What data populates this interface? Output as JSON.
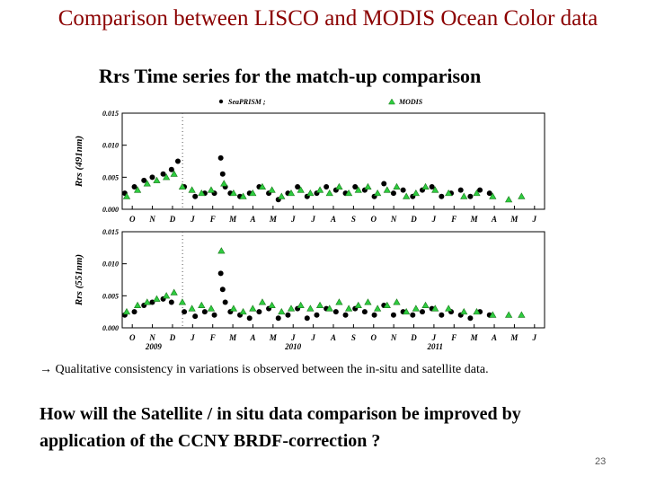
{
  "slide": {
    "title": "Comparison between LISCO and MODIS Ocean Color data",
    "subtitle": "Rrs Time series for the match-up comparison",
    "bullet_arrow": "→",
    "bullet_text": "Qualitative consistency in variations is observed between the in-situ and satellite data.",
    "question": "How will the Satellite / in situ data comparison be improved by application of the CCNY BRDF-correction ?",
    "page_number": "23"
  },
  "colors": {
    "title": "#8b0000",
    "seaprism": "#000000",
    "modis": "#2ecc40",
    "modis_edge": "#1a7a1a"
  },
  "chart_data": [
    {
      "type": "scatter",
      "ylabel": "Rrs (491nm)",
      "ylim": [
        0.0,
        0.015
      ],
      "y_ticks": [
        "0.000",
        "0.005",
        "0.010",
        "0.015"
      ],
      "x_range_months": [
        "2009-10",
        "2011-07"
      ],
      "month_ticks": [
        "O",
        "N",
        "D",
        "J",
        "F",
        "M",
        "A",
        "M",
        "J",
        "J",
        "A",
        "S",
        "O",
        "N",
        "D",
        "J",
        "F",
        "M",
        "A",
        "M",
        "J"
      ],
      "legend": {
        "items": [
          "SeaPRISM ;",
          "MODIS"
        ],
        "placement": "top"
      },
      "series": [
        {
          "name": "SeaPRISM",
          "marker": "circle",
          "x": [
            "2009-10-05",
            "2009-10-20",
            "2009-11-05",
            "2009-11-18",
            "2009-12-05",
            "2009-12-18",
            "2009-12-28",
            "2010-01-08",
            "2010-01-25",
            "2010-02-10",
            "2010-02-25",
            "2010-03-05",
            "2010-03-08",
            "2010-03-12",
            "2010-03-20",
            "2010-04-05",
            "2010-04-20",
            "2010-05-05",
            "2010-05-20",
            "2010-06-05",
            "2010-06-20",
            "2010-07-05",
            "2010-07-20",
            "2010-08-05",
            "2010-08-20",
            "2010-09-05",
            "2010-09-20",
            "2010-10-05",
            "2010-10-20",
            "2010-11-05",
            "2010-11-20",
            "2010-12-05",
            "2010-12-20",
            "2011-01-05",
            "2011-01-20",
            "2011-02-05",
            "2011-02-20",
            "2011-03-05",
            "2011-03-20",
            "2011-04-05",
            "2011-04-20",
            "2011-05-05"
          ],
          "y": [
            0.0025,
            0.0035,
            0.0045,
            0.005,
            0.0055,
            0.0062,
            0.0075,
            0.0035,
            0.002,
            0.0025,
            0.0025,
            0.008,
            0.0055,
            0.0035,
            0.0025,
            0.002,
            0.0025,
            0.0035,
            0.0025,
            0.0015,
            0.0025,
            0.0035,
            0.002,
            0.0025,
            0.0035,
            0.003,
            0.0025,
            0.0035,
            0.003,
            0.002,
            0.004,
            0.0025,
            0.003,
            0.002,
            0.003,
            0.0035,
            0.002,
            0.0025,
            0.003,
            0.002,
            0.003,
            0.0025
          ]
        },
        {
          "name": "MODIS",
          "marker": "triangle",
          "x": [
            "2009-10-08",
            "2009-10-25",
            "2009-11-10",
            "2009-11-25",
            "2009-12-10",
            "2009-12-22",
            "2010-01-05",
            "2010-01-20",
            "2010-02-05",
            "2010-02-20",
            "2010-03-10",
            "2010-03-25",
            "2010-04-10",
            "2010-04-25",
            "2010-05-10",
            "2010-05-25",
            "2010-06-10",
            "2010-06-25",
            "2010-07-10",
            "2010-07-25",
            "2010-08-10",
            "2010-08-25",
            "2010-09-10",
            "2010-09-25",
            "2010-10-10",
            "2010-10-25",
            "2010-11-10",
            "2010-11-25",
            "2010-12-10",
            "2010-12-25",
            "2011-01-10",
            "2011-01-25",
            "2011-02-10",
            "2011-03-01",
            "2011-03-25",
            "2011-04-15",
            "2011-05-10",
            "2011-06-05",
            "2011-06-25"
          ],
          "y": [
            0.002,
            0.003,
            0.004,
            0.0045,
            0.005,
            0.0055,
            0.0035,
            0.003,
            0.0025,
            0.003,
            0.004,
            0.0025,
            0.002,
            0.0025,
            0.0035,
            0.003,
            0.002,
            0.0025,
            0.003,
            0.0025,
            0.003,
            0.0025,
            0.0035,
            0.0025,
            0.003,
            0.0035,
            0.0025,
            0.003,
            0.0035,
            0.002,
            0.0025,
            0.0035,
            0.003,
            0.0025,
            0.002,
            0.0025,
            0.002,
            0.0015,
            0.002
          ]
        }
      ]
    },
    {
      "type": "scatter",
      "ylabel": "Rrs (551nm)",
      "ylim": [
        0.0,
        0.015
      ],
      "y_ticks": [
        "0.000",
        "0.005",
        "0.010",
        "0.015"
      ],
      "x_range_months": [
        "2009-10",
        "2011-07"
      ],
      "month_ticks": [
        "O",
        "N",
        "D",
        "J",
        "F",
        "M",
        "A",
        "M",
        "J",
        "J",
        "A",
        "S",
        "O",
        "N",
        "D",
        "J",
        "F",
        "M",
        "A",
        "M",
        "J"
      ],
      "year_labels": [
        {
          "label": "2009",
          "x": "2009-11-20"
        },
        {
          "label": "2010",
          "x": "2010-06-28"
        },
        {
          "label": "2011",
          "x": "2011-02-10"
        }
      ],
      "series": [
        {
          "name": "SeaPRISM",
          "marker": "circle",
          "x": [
            "2009-10-05",
            "2009-10-20",
            "2009-11-05",
            "2009-11-18",
            "2009-12-05",
            "2009-12-18",
            "2010-01-08",
            "2010-01-25",
            "2010-02-10",
            "2010-02-25",
            "2010-03-05",
            "2010-03-08",
            "2010-03-12",
            "2010-03-20",
            "2010-04-05",
            "2010-04-20",
            "2010-05-05",
            "2010-05-20",
            "2010-06-05",
            "2010-06-20",
            "2010-07-05",
            "2010-07-20",
            "2010-08-05",
            "2010-08-20",
            "2010-09-05",
            "2010-09-20",
            "2010-10-05",
            "2010-10-20",
            "2010-11-05",
            "2010-11-20",
            "2010-12-05",
            "2010-12-20",
            "2011-01-05",
            "2011-01-20",
            "2011-02-05",
            "2011-02-20",
            "2011-03-05",
            "2011-03-20",
            "2011-04-05",
            "2011-04-20",
            "2011-05-05"
          ],
          "y": [
            0.002,
            0.0025,
            0.0035,
            0.004,
            0.0045,
            0.004,
            0.0025,
            0.0018,
            0.0025,
            0.002,
            0.0085,
            0.006,
            0.004,
            0.0025,
            0.002,
            0.0015,
            0.0025,
            0.003,
            0.0015,
            0.002,
            0.003,
            0.0015,
            0.002,
            0.003,
            0.0025,
            0.002,
            0.003,
            0.0025,
            0.002,
            0.0035,
            0.002,
            0.0025,
            0.002,
            0.0025,
            0.003,
            0.002,
            0.0025,
            0.002,
            0.0015,
            0.0025,
            0.002
          ]
        },
        {
          "name": "MODIS",
          "marker": "triangle",
          "x": [
            "2009-10-08",
            "2009-10-25",
            "2009-11-10",
            "2009-11-25",
            "2009-12-10",
            "2009-12-22",
            "2010-01-05",
            "2010-01-20",
            "2010-02-05",
            "2010-02-20",
            "2010-03-06",
            "2010-03-25",
            "2010-04-10",
            "2010-04-25",
            "2010-05-10",
            "2010-05-25",
            "2010-06-10",
            "2010-06-25",
            "2010-07-10",
            "2010-07-25",
            "2010-08-10",
            "2010-08-25",
            "2010-09-10",
            "2010-09-25",
            "2010-10-10",
            "2010-10-25",
            "2010-11-10",
            "2010-11-25",
            "2010-12-10",
            "2010-12-25",
            "2011-01-10",
            "2011-01-25",
            "2011-02-10",
            "2011-03-01",
            "2011-03-25",
            "2011-04-15",
            "2011-05-10",
            "2011-06-05",
            "2011-06-25"
          ],
          "y": [
            0.0025,
            0.0035,
            0.004,
            0.0045,
            0.005,
            0.0055,
            0.004,
            0.003,
            0.0035,
            0.003,
            0.012,
            0.003,
            0.0025,
            0.003,
            0.004,
            0.0035,
            0.0025,
            0.003,
            0.0035,
            0.003,
            0.0035,
            0.003,
            0.004,
            0.003,
            0.0035,
            0.004,
            0.003,
            0.0035,
            0.004,
            0.0025,
            0.003,
            0.0035,
            0.003,
            0.003,
            0.0025,
            0.0025,
            0.002,
            0.002,
            0.002
          ]
        }
      ]
    }
  ]
}
